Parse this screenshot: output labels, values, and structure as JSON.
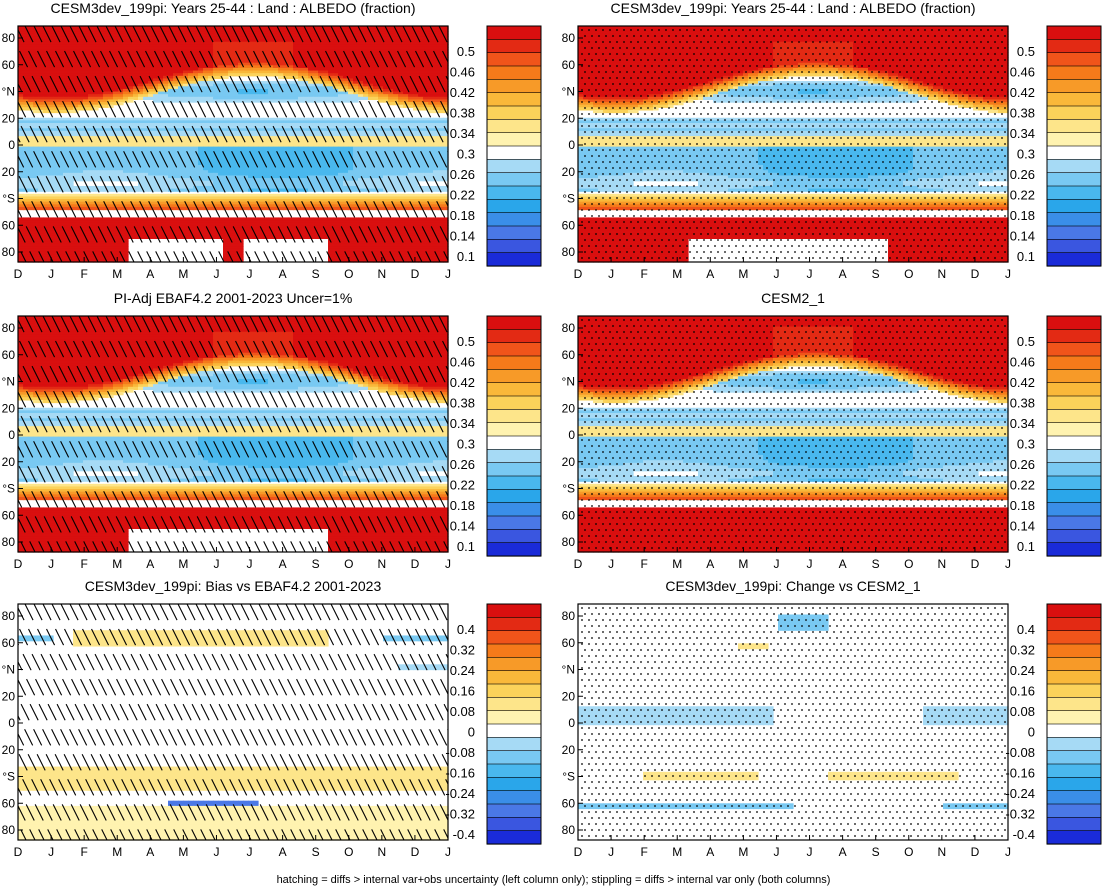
{
  "footer": "hatching = diffs > internal var+obs uncertainty (left column only); stippling = diffs > internal var only (both columns)",
  "colors": {
    "missing": "#ffffff",
    "albedo_palette": [
      "#1a2bd9",
      "#3a56e0",
      "#4a78e6",
      "#3a8ee8",
      "#2aa6ea",
      "#49b8ee",
      "#79c9f2",
      "#a6daf5",
      "#ffffff",
      "#fff3b0",
      "#fde58a",
      "#fbd25a",
      "#f9b83a",
      "#f79a28",
      "#f57a1a",
      "#f0541a",
      "#e32a14",
      "#d90f0f"
    ],
    "diff_palette": [
      "#1a2bd9",
      "#3a56e0",
      "#4a78e6",
      "#3a8ee8",
      "#2aa6ea",
      "#49b8ee",
      "#79c9f2",
      "#a6daf5",
      "#ffffff",
      "#fff3b0",
      "#fde58a",
      "#fbd25a",
      "#f9b83a",
      "#f79a28",
      "#f57a1a",
      "#f0541a",
      "#e32a14",
      "#d90f0f"
    ]
  },
  "chart_data": [
    {
      "id": "p1",
      "type": "heatmap",
      "title": "CESM3dev_199pi: Years 25-44 : Land : ALBEDO (fraction)",
      "x_tick_labels": [
        "D",
        "J",
        "F",
        "M",
        "A",
        "M",
        "J",
        "J",
        "A",
        "S",
        "O",
        "N",
        "D",
        "J"
      ],
      "y_tick_labels": [
        "80",
        "60",
        "°N",
        "20",
        "0",
        "20",
        "°S",
        "60",
        "80"
      ],
      "ylim": [
        -90,
        90
      ],
      "colorbar_labels": [
        "0.5",
        "0.46",
        "0.42",
        "0.38",
        "0.34",
        "0.3",
        "0.26",
        "0.22",
        "0.18",
        "0.14",
        "0.1"
      ],
      "field": "albedo",
      "overlay": "hatch"
    },
    {
      "id": "p2",
      "type": "heatmap",
      "title": "CESM3dev_199pi: Years 25-44 : Land : ALBEDO (fraction)",
      "x_tick_labels": [
        "D",
        "J",
        "F",
        "M",
        "A",
        "M",
        "J",
        "J",
        "A",
        "S",
        "O",
        "N",
        "D",
        "J"
      ],
      "y_tick_labels": [
        "80",
        "60",
        "°N",
        "20",
        "0",
        "20",
        "°S",
        "60",
        "80"
      ],
      "ylim": [
        -90,
        90
      ],
      "colorbar_labels": [
        "0.5",
        "0.46",
        "0.42",
        "0.38",
        "0.34",
        "0.3",
        "0.26",
        "0.22",
        "0.18",
        "0.14",
        "0.1"
      ],
      "field": "albedo",
      "overlay": "stipple"
    },
    {
      "id": "p3",
      "type": "heatmap",
      "title": "PI-Adj EBAF4.2 2001-2023 Uncer=1%",
      "x_tick_labels": [
        "D",
        "J",
        "F",
        "M",
        "A",
        "M",
        "J",
        "J",
        "A",
        "S",
        "O",
        "N",
        "D",
        "J"
      ],
      "y_tick_labels": [
        "80",
        "60",
        "°N",
        "20",
        "0",
        "20",
        "°S",
        "60",
        "80"
      ],
      "ylim": [
        -90,
        90
      ],
      "colorbar_labels": [
        "0.5",
        "0.46",
        "0.42",
        "0.38",
        "0.34",
        "0.3",
        "0.26",
        "0.22",
        "0.18",
        "0.14",
        "0.1"
      ],
      "field": "albedo",
      "overlay": "hatch"
    },
    {
      "id": "p4",
      "type": "heatmap",
      "title": "CESM2_1",
      "x_tick_labels": [
        "D",
        "J",
        "F",
        "M",
        "A",
        "M",
        "J",
        "J",
        "A",
        "S",
        "O",
        "N",
        "D",
        "J"
      ],
      "y_tick_labels": [
        "80",
        "60",
        "°N",
        "20",
        "0",
        "20",
        "°S",
        "60",
        "80"
      ],
      "ylim": [
        -90,
        90
      ],
      "colorbar_labels": [
        "0.5",
        "0.46",
        "0.42",
        "0.38",
        "0.34",
        "0.3",
        "0.26",
        "0.22",
        "0.18",
        "0.14",
        "0.1"
      ],
      "field": "albedo_full",
      "overlay": "stipple"
    },
    {
      "id": "p5",
      "type": "heatmap",
      "title": "CESM3dev_199pi: Bias vs EBAF4.2 2001-2023",
      "x_tick_labels": [
        "D",
        "J",
        "F",
        "M",
        "A",
        "M",
        "J",
        "J",
        "A",
        "S",
        "O",
        "N",
        "D",
        "J"
      ],
      "y_tick_labels": [
        "80",
        "60",
        "°N",
        "20",
        "0",
        "20",
        "°S",
        "60",
        "80"
      ],
      "ylim": [
        -90,
        90
      ],
      "colorbar_labels": [
        "0.4",
        "0.32",
        "0.24",
        "0.16",
        "0.08",
        "0",
        "-0.08",
        "-0.16",
        "-0.24",
        "-0.32",
        "-0.4"
      ],
      "field": "bias",
      "overlay": "hatch"
    },
    {
      "id": "p6",
      "type": "heatmap",
      "title": "CESM3dev_199pi: Change vs CESM2_1",
      "x_tick_labels": [
        "D",
        "J",
        "F",
        "M",
        "A",
        "M",
        "J",
        "J",
        "A",
        "S",
        "O",
        "N",
        "D",
        "J"
      ],
      "y_tick_labels": [
        "80",
        "60",
        "°N",
        "20",
        "0",
        "20",
        "°S",
        "60",
        "80"
      ],
      "ylim": [
        -90,
        90
      ],
      "colorbar_labels": [
        "0.4",
        "0.32",
        "0.24",
        "0.16",
        "0.08",
        "0",
        "-0.08",
        "-0.16",
        "-0.24",
        "-0.32",
        "-0.4"
      ],
      "field": "change",
      "overlay": "stipple"
    }
  ]
}
